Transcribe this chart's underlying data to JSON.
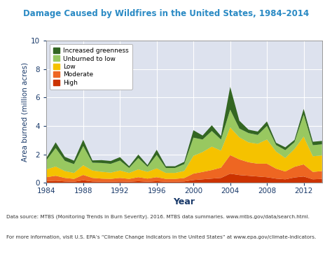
{
  "title": "Damage Caused by Wildfires in the United States, 1984–2014",
  "xlabel": "Year",
  "ylabel": "Area burned (million acres)",
  "title_color": "#2a8ac4",
  "axis_label_color": "#1a3a6a",
  "tick_color": "#1a3a6a",
  "background_color": "#dde2ee",
  "fig_background": "#ffffff",
  "years": [
    1984,
    1985,
    1986,
    1987,
    1988,
    1989,
    1990,
    1991,
    1992,
    1993,
    1994,
    1995,
    1996,
    1997,
    1998,
    1999,
    2000,
    2001,
    2002,
    2003,
    2004,
    2005,
    2006,
    2007,
    2008,
    2009,
    2010,
    2011,
    2012,
    2013,
    2014
  ],
  "high": [
    0.12,
    0.15,
    0.1,
    0.08,
    0.18,
    0.1,
    0.08,
    0.08,
    0.1,
    0.08,
    0.12,
    0.08,
    0.12,
    0.08,
    0.08,
    0.1,
    0.2,
    0.25,
    0.3,
    0.35,
    0.65,
    0.55,
    0.5,
    0.45,
    0.4,
    0.3,
    0.25,
    0.38,
    0.45,
    0.25,
    0.28
  ],
  "moderate": [
    0.28,
    0.35,
    0.25,
    0.2,
    0.38,
    0.25,
    0.22,
    0.2,
    0.25,
    0.2,
    0.28,
    0.22,
    0.28,
    0.2,
    0.2,
    0.24,
    0.45,
    0.52,
    0.6,
    0.72,
    1.3,
    1.1,
    0.95,
    0.9,
    0.95,
    0.7,
    0.55,
    0.75,
    0.85,
    0.52,
    0.55
  ],
  "low": [
    0.55,
    0.65,
    0.48,
    0.42,
    0.68,
    0.52,
    0.48,
    0.44,
    0.52,
    0.42,
    0.55,
    0.48,
    0.62,
    0.42,
    0.42,
    0.5,
    1.25,
    1.4,
    1.65,
    1.2,
    1.95,
    1.55,
    1.4,
    1.4,
    1.7,
    1.2,
    0.95,
    1.25,
    1.95,
    1.1,
    1.1
  ],
  "unburned": [
    0.65,
    1.3,
    0.72,
    0.62,
    1.35,
    0.55,
    0.62,
    0.62,
    0.7,
    0.35,
    0.8,
    0.35,
    0.95,
    0.35,
    0.35,
    0.48,
    1.28,
    0.88,
    1.1,
    0.78,
    1.25,
    0.62,
    0.65,
    0.62,
    0.95,
    0.46,
    0.55,
    0.48,
    1.55,
    0.78,
    0.78
  ],
  "greenness": [
    0.16,
    0.4,
    0.28,
    0.24,
    0.44,
    0.16,
    0.2,
    0.2,
    0.24,
    0.12,
    0.24,
    0.12,
    0.36,
    0.12,
    0.12,
    0.16,
    0.52,
    0.28,
    0.4,
    0.24,
    1.6,
    0.55,
    0.24,
    0.24,
    0.32,
    0.16,
    0.2,
    0.16,
    0.4,
    0.24,
    0.24
  ],
  "color_high": "#cc3300",
  "color_moderate": "#ee6622",
  "color_low": "#f5c200",
  "color_unburned": "#98c860",
  "color_greenness": "#336622",
  "ylim": [
    0,
    10
  ],
  "yticks": [
    0,
    2,
    4,
    6,
    8,
    10
  ],
  "xticks": [
    1984,
    1988,
    1992,
    1996,
    2000,
    2004,
    2008,
    2012
  ],
  "source_text": "Data source: MTBS (Monitoring Trends in Burn Severity). 2016. MTBS data summaries. www.mtbs.gov/data/search.html.",
  "info_text": "For more information, visit U.S. EPA’s “Climate Change Indicators in the United States” at www.epa.gov/climate-indicators."
}
